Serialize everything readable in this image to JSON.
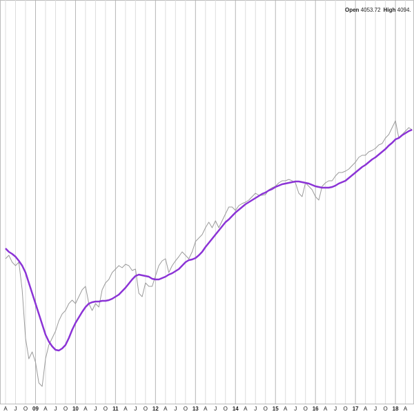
{
  "chart_data": {
    "type": "line",
    "ohlc": [
      {
        "label": "Open",
        "value": 4053.72
      },
      {
        "label": "High",
        "value": "4094."
      }
    ],
    "categories": [
      "A",
      null,
      null,
      "J",
      null,
      null,
      "O",
      null,
      null,
      "09",
      null,
      null,
      "A",
      null,
      null,
      "J",
      null,
      null,
      "O",
      null,
      null,
      "10",
      null,
      null,
      "A",
      null,
      null,
      "J",
      null,
      null,
      "O",
      null,
      null,
      "11",
      null,
      null,
      "A",
      null,
      null,
      "J",
      null,
      null,
      "O",
      null,
      null,
      "12",
      null,
      null,
      "A",
      null,
      null,
      "J",
      null,
      null,
      "O",
      null,
      null,
      "13",
      null,
      null,
      "A",
      null,
      null,
      "J",
      null,
      null,
      "O",
      null,
      null,
      "14",
      null,
      null,
      "A",
      null,
      null,
      "J",
      null,
      null,
      "O",
      null,
      null,
      "15",
      null,
      null,
      "A",
      null,
      null,
      "J",
      null,
      null,
      "O",
      null,
      null,
      "16",
      null,
      null,
      "A",
      null,
      null,
      "J",
      null,
      null,
      "O",
      null,
      null,
      "17",
      null,
      null,
      "A",
      null,
      null,
      "J",
      null,
      null,
      "O",
      null,
      null,
      "18",
      null,
      null,
      "A",
      null,
      null
    ],
    "series": [
      {
        "color": "#9a9a9a",
        "values": [
          3125,
          3150,
          3100,
          3075,
          3100,
          2900,
          2550,
          2400,
          2450,
          2375,
          2225,
          2200,
          2400,
          2500,
          2550,
          2600,
          2675,
          2725,
          2750,
          2800,
          2825,
          2800,
          2850,
          2900,
          2925,
          2800,
          2750,
          2800,
          2775,
          2900,
          2950,
          2975,
          3025,
          3050,
          3075,
          3060,
          3085,
          3075,
          3040,
          3050,
          2875,
          2850,
          2950,
          2925,
          2925,
          3000,
          3075,
          3110,
          3125,
          3025,
          3075,
          3110,
          3140,
          3175,
          3150,
          3125,
          3175,
          3250,
          3275,
          3300,
          3350,
          3390,
          3350,
          3400,
          3350,
          3400,
          3450,
          3500,
          3500,
          3475,
          3510,
          3525,
          3535,
          3550,
          3575,
          3600,
          3585,
          3585,
          3590,
          3625,
          3640,
          3650,
          3675,
          3690,
          3690,
          3700,
          3690,
          3675,
          3600,
          3575,
          3675,
          3650,
          3625,
          3575,
          3550,
          3650,
          3675,
          3690,
          3690,
          3725,
          3750,
          3750,
          3760,
          3775,
          3800,
          3825,
          3860,
          3875,
          3875,
          3900,
          3910,
          3925,
          3950,
          3960,
          4000,
          4025,
          4075,
          4125,
          4000,
          4025,
          4050,
          4075,
          4060
        ]
      },
      {
        "color": "#8b33d6",
        "values": [
          3200,
          3175,
          3160,
          3140,
          3110,
          3075,
          3025,
          2950,
          2875,
          2800,
          2725,
          2650,
          2575,
          2525,
          2490,
          2465,
          2460,
          2475,
          2500,
          2550,
          2610,
          2660,
          2700,
          2740,
          2775,
          2800,
          2810,
          2815,
          2815,
          2820,
          2820,
          2825,
          2835,
          2850,
          2865,
          2890,
          2915,
          2945,
          2975,
          3000,
          3010,
          3005,
          3000,
          2995,
          2980,
          2975,
          2975,
          2985,
          2995,
          3010,
          3020,
          3035,
          3050,
          3075,
          3100,
          3115,
          3120,
          3130,
          3150,
          3175,
          3210,
          3240,
          3270,
          3300,
          3330,
          3360,
          3390,
          3410,
          3435,
          3460,
          3480,
          3500,
          3520,
          3535,
          3550,
          3565,
          3580,
          3595,
          3605,
          3620,
          3630,
          3645,
          3655,
          3665,
          3670,
          3675,
          3680,
          3685,
          3685,
          3680,
          3675,
          3670,
          3660,
          3650,
          3645,
          3640,
          3640,
          3640,
          3645,
          3655,
          3670,
          3680,
          3690,
          3710,
          3730,
          3750,
          3770,
          3790,
          3805,
          3825,
          3845,
          3860,
          3880,
          3900,
          3920,
          3945,
          3965,
          3990,
          4000,
          4020,
          4035,
          4050,
          4060
        ]
      }
    ],
    "ylim": [
      2075,
      5000
    ],
    "grid": true
  }
}
